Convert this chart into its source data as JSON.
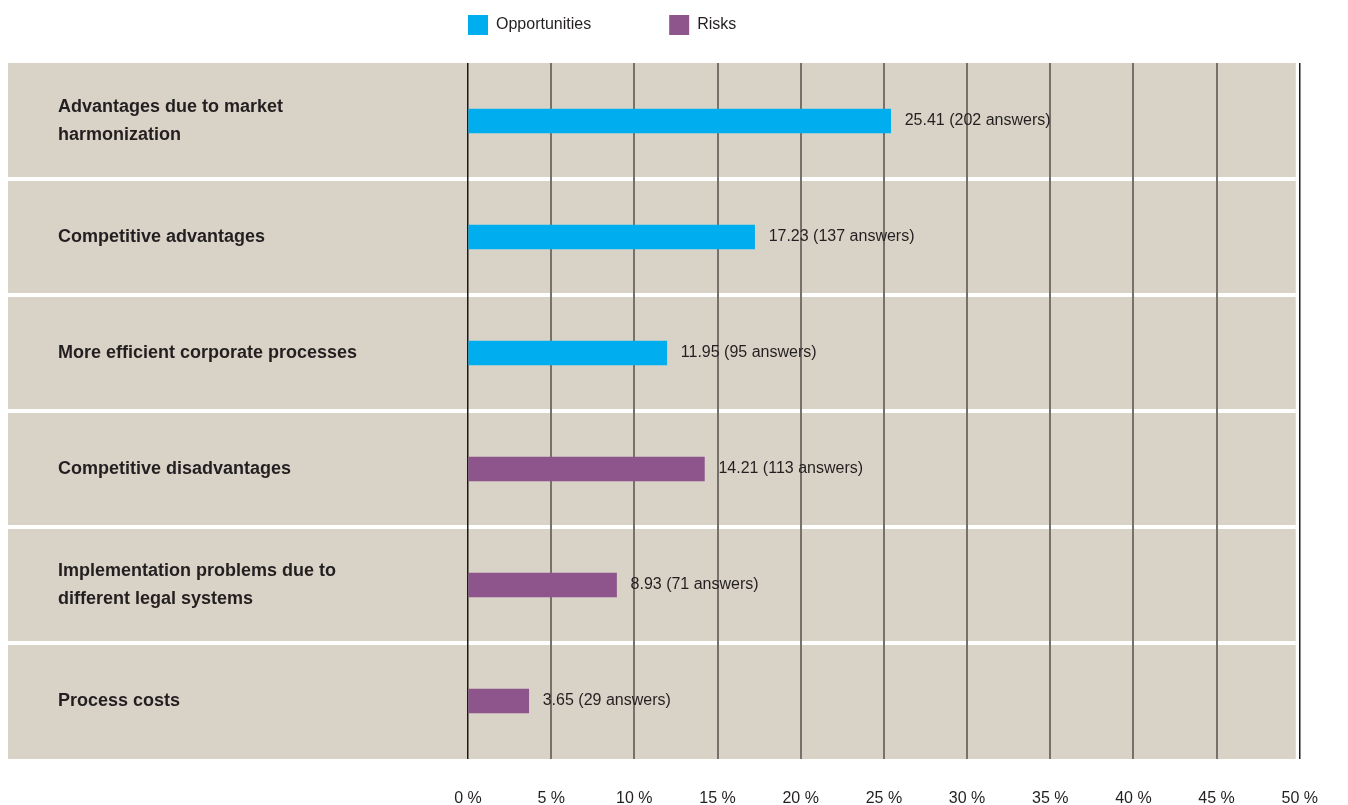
{
  "chart_data": {
    "type": "bar",
    "orientation": "horizontal",
    "categories": [
      "Advantages due to market harmonization",
      "Competitive advantages",
      "More efficient corporate processes",
      "Competitive disadvantages",
      "Implementation problems due to different legal systems",
      "Process costs"
    ],
    "series": [
      {
        "name": "Opportunities",
        "color": "#00aeef",
        "values": [
          25.41,
          17.23,
          11.95,
          null,
          null,
          null
        ],
        "value_labels": [
          "25.41 (202 answers)",
          "17.23 (137 answers)",
          "11.95 (95 answers)",
          null,
          null,
          null
        ]
      },
      {
        "name": "Risks",
        "color": "#8e558c",
        "values": [
          null,
          null,
          null,
          14.21,
          8.93,
          3.65
        ],
        "value_labels": [
          null,
          null,
          null,
          "14.21 (113 answers)",
          "8.93 (71 answers)",
          "3.65 (29 answers)"
        ]
      }
    ],
    "xlim": [
      0,
      50
    ],
    "xticks": [
      {
        "value": 0,
        "label": "0 %"
      },
      {
        "value": 5,
        "label": "5 %"
      },
      {
        "value": 10,
        "label": "10 %"
      },
      {
        "value": 15,
        "label": "15 %"
      },
      {
        "value": 20,
        "label": "20 %"
      },
      {
        "value": 25,
        "label": "25 %"
      },
      {
        "value": 30,
        "label": "30 %"
      },
      {
        "value": 35,
        "label": "35 %"
      },
      {
        "value": 40,
        "label": "40 %"
      },
      {
        "value": 45,
        "label": "45 %"
      },
      {
        "value": 50,
        "label": "50 %"
      }
    ],
    "grid": "x",
    "legend": "top"
  }
}
